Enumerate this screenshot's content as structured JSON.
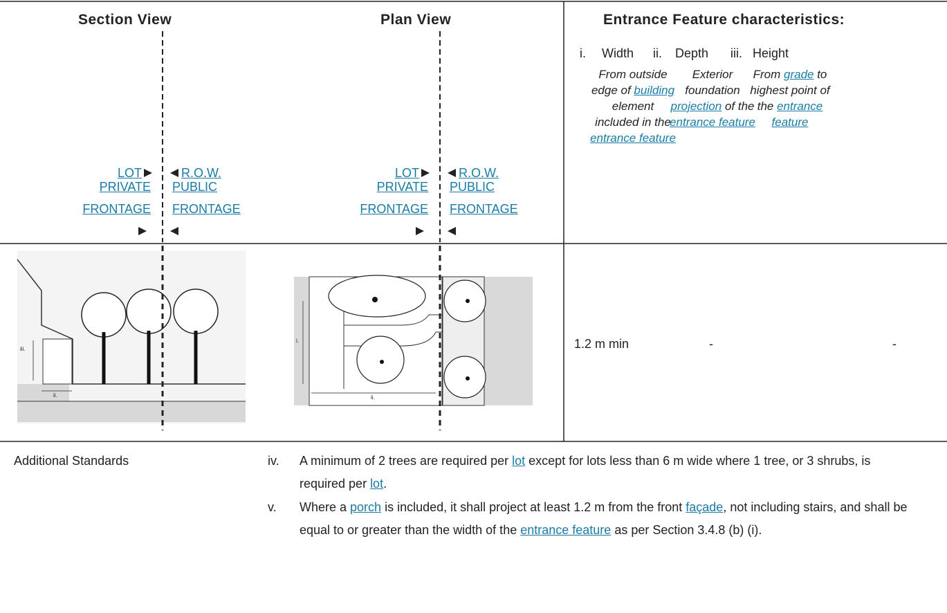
{
  "section_view": {
    "title": "Section View",
    "lot": "LOT",
    "row": "R.O.W.",
    "private_frontage": "PRIVATE FRONTAGE",
    "public_frontage": "PUBLIC FRONTAGE",
    "image_labels": [
      "iii.",
      "ii."
    ]
  },
  "plan_view": {
    "title": "Plan View",
    "lot": "LOT",
    "row": "R.O.W.",
    "private_frontage": "PRIVATE FRONTAGE",
    "public_frontage": "PUBLIC FRONTAGE",
    "image_labels": [
      "i.",
      "ii."
    ]
  },
  "entrance_feature": {
    "title": "Entrance Feature characteristics:",
    "columns": [
      {
        "number": "i.",
        "label": "Width",
        "description": [
          "From outside edge of ",
          {
            "link": "building"
          },
          " element included in the ",
          {
            "link": "entrance feature"
          }
        ],
        "value": "1.2 m min"
      },
      {
        "number": "ii.",
        "label": "Depth",
        "description": [
          "Exterior foundation ",
          {
            "link": "projection"
          },
          " of the ",
          {
            "link": "entrance feature"
          }
        ],
        "value": "-"
      },
      {
        "number": "iii.",
        "label": "Height",
        "description": [
          "From ",
          {
            "link": "grade"
          },
          " to highest point of the ",
          {
            "link": "entrance feature"
          }
        ],
        "value": "-"
      }
    ]
  },
  "additional_standards": {
    "label": "Additional Standards",
    "items": [
      {
        "number": "iv.",
        "text": [
          "A minimum of 2 trees are required per ",
          {
            "link": "lot"
          },
          " except for lots less than 6 m wide where 1 tree, or 3 shrubs, is required per ",
          {
            "link": "lot"
          },
          "."
        ]
      },
      {
        "number": "v.",
        "text": [
          "Where a ",
          {
            "link": "porch"
          },
          " is included, it shall project at least 1.2 m from the front ",
          {
            "link": "façade"
          },
          ", not including stairs, and shall be equal to or greater than the width of the ",
          {
            "link": "entrance feature"
          },
          " as per Section 3.4.8 (b) (i)."
        ]
      }
    ]
  }
}
